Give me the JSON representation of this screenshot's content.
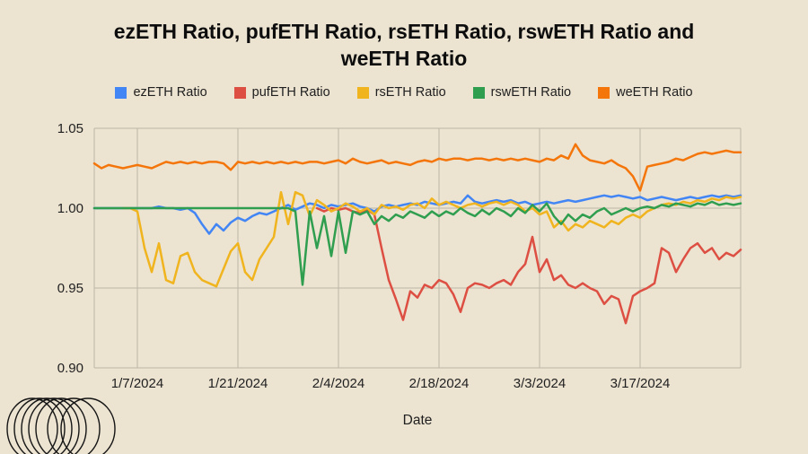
{
  "title": {
    "line1": "ezETH Ratio, pufETH Ratio, rsETH Ratio, rswETH Ratio and",
    "line2": "weETH Ratio",
    "full": "ezETH Ratio, pufETH Ratio, rsETH Ratio, rswETH Ratio and weETH Ratio"
  },
  "xlabel": "Date",
  "colors": {
    "background": "#ece3d1",
    "grid": "#bdb7a8",
    "tick_text": "#1f1f1f",
    "title_text": "#0d0d0d"
  },
  "chart_data": {
    "type": "line",
    "title": "ezETH Ratio, pufETH Ratio, rsETH Ratio, rswETH Ratio and weETH Ratio",
    "xlabel": "Date",
    "ylabel": "",
    "ylim": [
      0.9,
      1.05
    ],
    "x_range_days": [
      0,
      90
    ],
    "x_unit": "days since 1/1/2024, daily points",
    "grid": true,
    "legend_position": "top",
    "y_ticks": [
      {
        "label": "1.05",
        "value": 1.05
      },
      {
        "label": "1.00",
        "value": 1.0
      },
      {
        "label": "0.95",
        "value": 0.95
      },
      {
        "label": "0.90",
        "value": 0.9
      }
    ],
    "x_ticks": [
      {
        "label": "1/7/2024",
        "day": 6
      },
      {
        "label": "1/21/2024",
        "day": 20
      },
      {
        "label": "2/4/2024",
        "day": 34
      },
      {
        "label": "2/18/2024",
        "day": 48
      },
      {
        "label": "3/3/2024",
        "day": 62
      },
      {
        "label": "3/17/2024",
        "day": 76
      }
    ],
    "series": [
      {
        "name": "ezETH Ratio",
        "color": "#4285f4",
        "values": [
          1.0,
          1.0,
          1.0,
          1.0,
          1.0,
          1.0,
          1.0,
          1.0,
          1.0,
          1.001,
          1.0,
          1.0,
          0.999,
          1.0,
          0.997,
          0.99,
          0.984,
          0.99,
          0.986,
          0.991,
          0.994,
          0.992,
          0.995,
          0.997,
          0.996,
          0.998,
          1.0,
          1.002,
          0.999,
          1.001,
          1.003,
          1.002,
          1.0,
          1.002,
          1.001,
          1.002,
          1.003,
          1.001,
          1.0,
          0.998,
          1.001,
          1.002,
          1.001,
          1.002,
          1.003,
          1.002,
          1.004,
          1.003,
          1.002,
          1.003,
          1.004,
          1.003,
          1.008,
          1.004,
          1.003,
          1.004,
          1.005,
          1.004,
          1.005,
          1.003,
          1.004,
          1.002,
          1.003,
          1.004,
          1.003,
          1.004,
          1.005,
          1.004,
          1.005,
          1.006,
          1.007,
          1.008,
          1.007,
          1.008,
          1.007,
          1.006,
          1.007,
          1.005,
          1.006,
          1.007,
          1.006,
          1.005,
          1.006,
          1.007,
          1.006,
          1.007,
          1.008,
          1.007,
          1.008,
          1.007,
          1.008
        ]
      },
      {
        "name": "pufETH Ratio",
        "color": "#dd4f42",
        "values": [
          null,
          null,
          null,
          null,
          null,
          null,
          null,
          null,
          null,
          null,
          null,
          null,
          null,
          null,
          null,
          null,
          null,
          null,
          null,
          null,
          null,
          null,
          null,
          null,
          null,
          null,
          null,
          null,
          null,
          null,
          null,
          1.0,
          0.998,
          1.0,
          0.999,
          1.0,
          0.998,
          0.997,
          0.999,
          0.996,
          0.975,
          0.955,
          0.943,
          0.93,
          0.948,
          0.944,
          0.952,
          0.95,
          0.955,
          0.953,
          0.946,
          0.935,
          0.95,
          0.953,
          0.952,
          0.95,
          0.953,
          0.955,
          0.952,
          0.96,
          0.965,
          0.982,
          0.96,
          0.968,
          0.955,
          0.958,
          0.952,
          0.95,
          0.953,
          0.95,
          0.948,
          0.94,
          0.945,
          0.943,
          0.928,
          0.945,
          0.948,
          0.95,
          0.953,
          0.975,
          0.972,
          0.96,
          0.968,
          0.975,
          0.978,
          0.972,
          0.975,
          0.968,
          0.972,
          0.97,
          0.974
        ]
      },
      {
        "name": "rsETH Ratio",
        "color": "#f0b41e",
        "values": [
          null,
          null,
          null,
          null,
          1.0,
          1.0,
          0.998,
          0.975,
          0.96,
          0.978,
          0.955,
          0.953,
          0.97,
          0.972,
          0.96,
          0.955,
          0.953,
          0.951,
          0.962,
          0.973,
          0.978,
          0.96,
          0.955,
          0.968,
          0.975,
          0.982,
          1.01,
          0.99,
          1.01,
          1.008,
          0.995,
          1.005,
          1.002,
          0.998,
          1.0,
          1.003,
          1.001,
          0.998,
          1.0,
          0.996,
          1.002,
          1.0,
          1.001,
          0.999,
          1.002,
          1.003,
          1.0,
          1.006,
          1.002,
          1.004,
          1.002,
          1.0,
          1.002,
          1.003,
          1.001,
          1.003,
          1.004,
          1.002,
          1.004,
          1.002,
          0.998,
          1.0,
          0.996,
          0.998,
          0.988,
          0.992,
          0.986,
          0.99,
          0.988,
          0.992,
          0.99,
          0.988,
          0.992,
          0.99,
          0.994,
          0.996,
          0.994,
          0.998,
          1.0,
          1.002,
          1.003,
          1.002,
          1.004,
          1.003,
          1.005,
          1.004,
          1.006,
          1.005,
          1.007,
          1.006,
          1.007
        ]
      },
      {
        "name": "rswETH Ratio",
        "color": "#2f9e4f",
        "values": [
          1.0,
          1.0,
          1.0,
          1.0,
          1.0,
          1.0,
          1.0,
          1.0,
          1.0,
          1.0,
          1.0,
          1.0,
          1.0,
          1.0,
          1.0,
          1.0,
          1.0,
          1.0,
          1.0,
          1.0,
          1.0,
          1.0,
          1.0,
          1.0,
          1.0,
          1.0,
          1.0,
          1.0,
          0.998,
          0.952,
          0.998,
          0.975,
          0.995,
          0.97,
          0.998,
          0.972,
          0.998,
          0.996,
          0.998,
          0.99,
          0.995,
          0.992,
          0.996,
          0.994,
          0.998,
          0.996,
          0.994,
          0.998,
          0.995,
          0.998,
          0.996,
          1.0,
          0.997,
          0.995,
          0.999,
          0.996,
          1.0,
          0.998,
          0.995,
          1.0,
          0.997,
          1.002,
          0.998,
          1.003,
          0.995,
          0.99,
          0.996,
          0.992,
          0.996,
          0.994,
          0.998,
          1.0,
          0.996,
          0.998,
          1.0,
          0.998,
          1.0,
          1.001,
          1.0,
          1.002,
          1.001,
          1.003,
          1.002,
          1.001,
          1.003,
          1.002,
          1.004,
          1.002,
          1.003,
          1.002,
          1.003
        ]
      },
      {
        "name": "weETH Ratio",
        "color": "#f4760b",
        "values": [
          1.028,
          1.025,
          1.027,
          1.026,
          1.025,
          1.026,
          1.027,
          1.026,
          1.025,
          1.027,
          1.029,
          1.028,
          1.029,
          1.028,
          1.029,
          1.028,
          1.029,
          1.029,
          1.028,
          1.024,
          1.029,
          1.028,
          1.029,
          1.028,
          1.029,
          1.028,
          1.029,
          1.028,
          1.029,
          1.028,
          1.029,
          1.029,
          1.028,
          1.029,
          1.03,
          1.028,
          1.031,
          1.029,
          1.028,
          1.029,
          1.03,
          1.028,
          1.029,
          1.028,
          1.027,
          1.029,
          1.03,
          1.029,
          1.031,
          1.03,
          1.031,
          1.031,
          1.03,
          1.031,
          1.031,
          1.03,
          1.031,
          1.03,
          1.031,
          1.03,
          1.031,
          1.03,
          1.029,
          1.031,
          1.03,
          1.033,
          1.031,
          1.04,
          1.033,
          1.03,
          1.029,
          1.028,
          1.03,
          1.027,
          1.025,
          1.02,
          1.011,
          1.026,
          1.027,
          1.028,
          1.029,
          1.031,
          1.03,
          1.032,
          1.034,
          1.035,
          1.034,
          1.035,
          1.036,
          1.035,
          1.035
        ]
      }
    ]
  }
}
